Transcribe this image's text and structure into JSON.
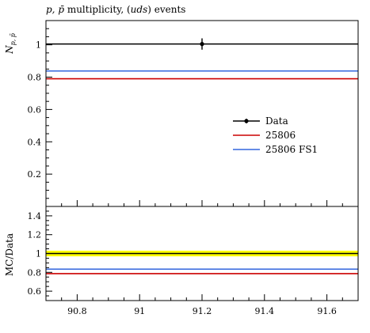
{
  "chart_data": {
    "type": "line",
    "title_parts": {
      "pre": "p, ",
      "pbar": "p̄",
      "mid": " multiplicity, (",
      "uds": "uds",
      "post": ") events"
    },
    "ylabel_main": {
      "base": "N",
      "sub": "p, p̄"
    },
    "ylabel_ratio": "MC/Data",
    "xlim": [
      90.7,
      91.7
    ],
    "ylim_main": [
      0.0,
      1.15
    ],
    "ylim_ratio": [
      0.5,
      1.5
    ],
    "x_ticks": [
      90.8,
      91.0,
      91.2,
      91.4,
      91.6
    ],
    "x_tick_labels": [
      "90.8",
      "91",
      "91.2",
      "91.4",
      "91.6"
    ],
    "y_ticks_main": [
      0.2,
      0.4,
      0.6,
      0.8,
      1.0
    ],
    "y_tick_labels_main": [
      "0.2",
      "0.4",
      "0.6",
      "0.8",
      "1"
    ],
    "y_ticks_ratio": [
      0.6,
      0.8,
      1.0,
      1.2,
      1.4
    ],
    "y_tick_labels_ratio": [
      "0.6",
      "0.8",
      "1",
      "1.2",
      "1.4"
    ],
    "series": [
      {
        "name": "Data",
        "color": "#000000",
        "value": 1.005,
        "point_x": 91.2,
        "error": 0.035,
        "ratio": 1.0,
        "ratio_band": 0.03
      },
      {
        "name": "25806",
        "color": "#cc0000",
        "value": 0.79,
        "ratio": 0.786
      },
      {
        "name": "25806 FS1",
        "color": "#3366dd",
        "value": 0.838,
        "ratio": 0.834
      }
    ],
    "ratio_band_color": "#ffff00",
    "legend_position": "right"
  }
}
